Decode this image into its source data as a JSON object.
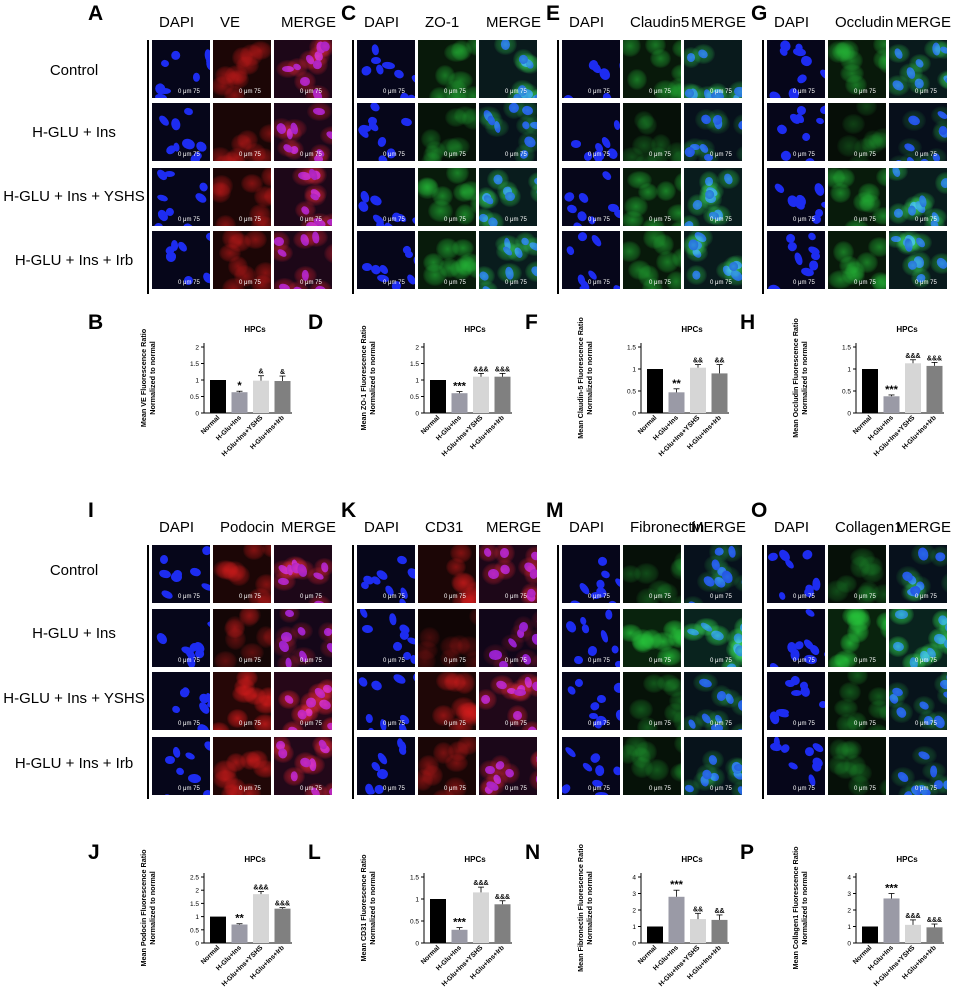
{
  "sections": [
    {
      "top": true,
      "row_labels": [
        "Control",
        "H-GLU + Ins",
        "H-GLU + Ins + YSHS",
        "H-GLU + Ins + Irb"
      ],
      "panels": [
        {
          "letter": "A",
          "channels": [
            "DAPI",
            "VE",
            "MERGE"
          ],
          "stain": "red"
        },
        {
          "letter": "C",
          "channels": [
            "DAPI",
            "ZO-1",
            "MERGE"
          ],
          "stain": "green"
        },
        {
          "letter": "E",
          "channels": [
            "DAPI",
            "Claudin5",
            "MERGE"
          ],
          "stain": "green"
        },
        {
          "letter": "G",
          "channels": [
            "DAPI",
            "Occludin",
            "MERGE"
          ],
          "stain": "green"
        }
      ]
    },
    {
      "top": false,
      "row_labels": [
        "Control",
        "H-GLU + Ins",
        "H-GLU + Ins + YSHS",
        "H-GLU + Ins + Irb"
      ],
      "panels": [
        {
          "letter": "I",
          "channels": [
            "DAPI",
            "Podocin",
            "MERGE"
          ],
          "stain": "red"
        },
        {
          "letter": "K",
          "channels": [
            "DAPI",
            "CD31",
            "MERGE"
          ],
          "stain": "red"
        },
        {
          "letter": "M",
          "channels": [
            "DAPI",
            "Fibronectin",
            "MERGE"
          ],
          "stain": "green"
        },
        {
          "letter": "O",
          "channels": [
            "DAPI",
            "Collagen1",
            "MERGE"
          ],
          "stain": "green"
        }
      ]
    }
  ],
  "scale_bar": {
    "zero": "0",
    "unit": "μm",
    "length": "75"
  },
  "chart_data": [
    {
      "letter": "B",
      "type": "bar",
      "title": "HPCs",
      "ylabel": [
        "Mean VE Fluorescence Ratio",
        "Normalized to normal"
      ],
      "categories": [
        "Normal",
        "H-Glu+Ins",
        "H-Glu+Ins+YSHS",
        "H-Glu+Ins+Irb"
      ],
      "values": [
        1.0,
        0.63,
        0.98,
        0.97
      ],
      "errors": [
        0,
        0.03,
        0.15,
        0.15
      ],
      "annotations": [
        "",
        "*",
        "&",
        "&"
      ],
      "yticks": [
        0,
        0.5,
        1.0,
        1.5,
        2.0
      ],
      "ylim": [
        0,
        2.0
      ]
    },
    {
      "letter": "D",
      "type": "bar",
      "title": "HPCs",
      "ylabel": [
        "Mean ZO-1 Fluorescence Ratio",
        "Normalized to normal"
      ],
      "categories": [
        "Normal",
        "H-Glu+Ins",
        "H-Glu+Ins+YSHS",
        "H-Glu+Ins+Irb"
      ],
      "values": [
        1.0,
        0.6,
        1.1,
        1.1
      ],
      "errors": [
        0,
        0.05,
        0.1,
        0.1
      ],
      "annotations": [
        "",
        "***",
        "&&&",
        "&&&"
      ],
      "yticks": [
        0.0,
        0.5,
        1.0,
        1.5,
        2.0
      ],
      "ylim": [
        0,
        2.0
      ]
    },
    {
      "letter": "F",
      "type": "bar",
      "title": "HPCs",
      "ylabel": [
        "Mean Claudin-5 Fluorescence Ratio",
        "Normalized to normal"
      ],
      "categories": [
        "Normal",
        "H-Glu+Ins",
        "H-Glu+Ins+YSHS",
        "H-Glu+Ins+Irb"
      ],
      "values": [
        1.0,
        0.47,
        1.03,
        0.9
      ],
      "errors": [
        0,
        0.08,
        0.07,
        0.2
      ],
      "annotations": [
        "",
        "**",
        "&&",
        "&&"
      ],
      "yticks": [
        0.0,
        0.5,
        1.0,
        1.5
      ],
      "ylim": [
        0,
        1.5
      ]
    },
    {
      "letter": "H",
      "type": "bar",
      "title": "HPCs",
      "ylabel": [
        "Mean Occludin Fluorescence Ratio",
        "Normalized to normal"
      ],
      "categories": [
        "Normal",
        "H-Glu+Ins",
        "H-Glu+Ins+YSHS",
        "H-Glu+Ins+Irb"
      ],
      "values": [
        1.0,
        0.38,
        1.13,
        1.07
      ],
      "errors": [
        0,
        0.03,
        0.08,
        0.08
      ],
      "annotations": [
        "",
        "***",
        "&&&",
        "&&&"
      ],
      "yticks": [
        0.0,
        0.5,
        1.0,
        1.5
      ],
      "ylim": [
        0,
        1.5
      ]
    },
    {
      "letter": "J",
      "type": "bar",
      "title": "HPCs",
      "ylabel": [
        "Mean Podocin Fluorescence Ratio",
        "Normalized to normal"
      ],
      "categories": [
        "Normal",
        "H-Glu+Ins",
        "H-Glu+Ins+YSHS",
        "H-Glu+Ins+Irb"
      ],
      "values": [
        1.0,
        0.7,
        1.85,
        1.3
      ],
      "errors": [
        0,
        0.03,
        0.1,
        0.04
      ],
      "annotations": [
        "",
        "**",
        "&&&",
        "&&&"
      ],
      "yticks": [
        0.0,
        0.5,
        1.0,
        1.5,
        2.0,
        2.5
      ],
      "ylim": [
        0,
        2.5
      ]
    },
    {
      "letter": "L",
      "type": "bar",
      "title": "HPCs",
      "ylabel": [
        "Mean CD31 Fluorescence Ratio",
        "Normalized to normal"
      ],
      "categories": [
        "Normal",
        "H-Glu+Ins",
        "H-Glu+Ins+YSHS",
        "H-Glu+Ins+Irb"
      ],
      "values": [
        1.0,
        0.3,
        1.15,
        0.88
      ],
      "errors": [
        0,
        0.05,
        0.12,
        0.08
      ],
      "annotations": [
        "",
        "***",
        "&&&",
        "&&&"
      ],
      "yticks": [
        0.0,
        0.5,
        1.0,
        1.5
      ],
      "ylim": [
        0,
        1.5
      ]
    },
    {
      "letter": "N",
      "type": "bar",
      "title": "HPCs",
      "ylabel": [
        "Mean Fibronectin Fluorescence Ratio",
        "Normalized to normal"
      ],
      "categories": [
        "Normal",
        "H-Glu+Ins",
        "H-Glu+Ins+YSHS",
        "H-Glu+Ins+Irb"
      ],
      "values": [
        1.0,
        2.8,
        1.45,
        1.4
      ],
      "errors": [
        0,
        0.4,
        0.35,
        0.3
      ],
      "annotations": [
        "",
        "***",
        "&&",
        "&&"
      ],
      "yticks": [
        0,
        1,
        2,
        3,
        4
      ],
      "ylim": [
        0,
        4
      ]
    },
    {
      "letter": "P",
      "type": "bar",
      "title": "HPCs",
      "ylabel": [
        "Mean Collagen1 Fluorescence Ratio",
        "Normalized to normal"
      ],
      "categories": [
        "Normal",
        "H-Glu+Ins",
        "H-Glu+Ins+YSHS",
        "H-Glu+Ins+Irb"
      ],
      "values": [
        1.0,
        2.7,
        1.1,
        0.95
      ],
      "errors": [
        0,
        0.3,
        0.3,
        0.2
      ],
      "annotations": [
        "",
        "***",
        "&&&",
        "&&&"
      ],
      "yticks": [
        0,
        1,
        2,
        3,
        4
      ],
      "ylim": [
        0,
        4
      ]
    }
  ]
}
